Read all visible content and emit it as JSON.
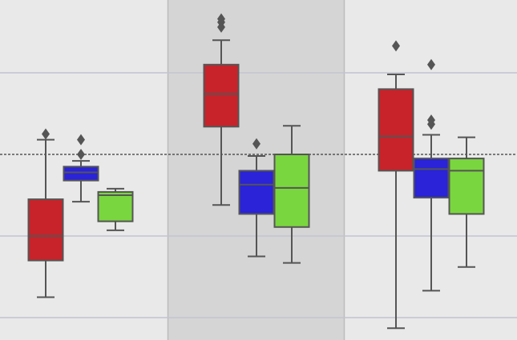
{
  "chart_data": {
    "type": "box",
    "title": "",
    "xlabel": "",
    "ylabel": "",
    "grid": true,
    "legend": "none",
    "ylim": [
      -2.3,
      1.85
    ],
    "reference_line": {
      "y": 0,
      "style": "dashed"
    },
    "highlighted_group": 1,
    "colors": {
      "background": "#e9e9e9",
      "highlight_band": "#d5d5d5",
      "grid": "#c3c3d2",
      "outline": "#555555"
    },
    "series_colors": [
      "#c8232a",
      "#2a23d8",
      "#7ad63e"
    ],
    "groups": [
      {
        "boxes": [
          {
            "whislo": -1.75,
            "q1": -1.3,
            "med": -1.0,
            "q3": -0.55,
            "whishi": 0.18,
            "fliers": [
              0.25
            ]
          },
          {
            "whislo": -0.58,
            "q1": -0.32,
            "med": -0.22,
            "q3": -0.15,
            "whishi": -0.08,
            "fliers": [
              0.0,
              0.18
            ]
          },
          {
            "whislo": -0.93,
            "q1": -0.82,
            "med": -0.5,
            "q3": -0.46,
            "whishi": -0.42,
            "fliers": []
          }
        ]
      },
      {
        "boxes": [
          {
            "whislo": -0.62,
            "q1": 0.34,
            "med": 0.74,
            "q3": 1.1,
            "whishi": 1.4,
            "fliers": [
              1.62,
              1.66,
              1.56
            ]
          },
          {
            "whislo": -1.25,
            "q1": -0.73,
            "med": -0.37,
            "q3": -0.2,
            "whishi": -0.02,
            "fliers": [
              0.13
            ]
          },
          {
            "whislo": -1.33,
            "q1": -0.89,
            "med": -0.41,
            "q3": 0.0,
            "whishi": 0.35,
            "fliers": []
          }
        ]
      },
      {
        "boxes": [
          {
            "whislo": -2.13,
            "q1": -0.2,
            "med": 0.22,
            "q3": 0.8,
            "whishi": 0.98,
            "fliers": [
              1.33
            ]
          },
          {
            "whislo": -1.67,
            "q1": -0.53,
            "med": -0.18,
            "q3": -0.05,
            "whishi": 0.24,
            "fliers": [
              1.1,
              0.37,
              0.42
            ]
          },
          {
            "whislo": -1.38,
            "q1": -0.73,
            "med": -0.2,
            "q3": -0.05,
            "whishi": 0.21,
            "fliers": []
          }
        ]
      }
    ]
  }
}
